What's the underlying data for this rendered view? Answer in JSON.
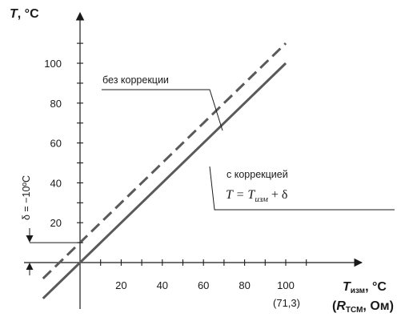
{
  "chart_data": {
    "type": "line",
    "x": [
      0,
      100
    ],
    "xticks": [
      "20",
      "40",
      "60",
      "80",
      "100"
    ],
    "yticks": [
      "20",
      "40",
      "60",
      "80",
      "100"
    ],
    "xlim": [
      0,
      100
    ],
    "ylim": [
      0,
      100
    ],
    "grid": false,
    "series": [
      {
        "label": "без коррекции",
        "line_style": "dashed",
        "color": "#5a5a5a",
        "x": [
          -18,
          100
        ],
        "y": [
          -8,
          110
        ]
      },
      {
        "label": "с коррекцией",
        "formula": {
          "lhs": "T = T",
          "sub": "изм",
          "rhs": " + δ"
        },
        "line_style": "solid",
        "color": "#5a5a5a",
        "x": [
          -18,
          100
        ],
        "y": [
          -18,
          100
        ]
      }
    ],
    "ylabel": {
      "main": "T",
      "suffix": ", °C"
    },
    "xlabel": {
      "line1": {
        "main": "T",
        "sub": "изм",
        "suffix": ", °C"
      },
      "line2": {
        "open": "(",
        "main": "R",
        "sub": "ТСМ",
        "suffix": ", Ом)"
      }
    },
    "x_tick_note": "(71,3)",
    "offset_annotation": {
      "text": "δ = −10ºC",
      "delta": 10
    }
  }
}
